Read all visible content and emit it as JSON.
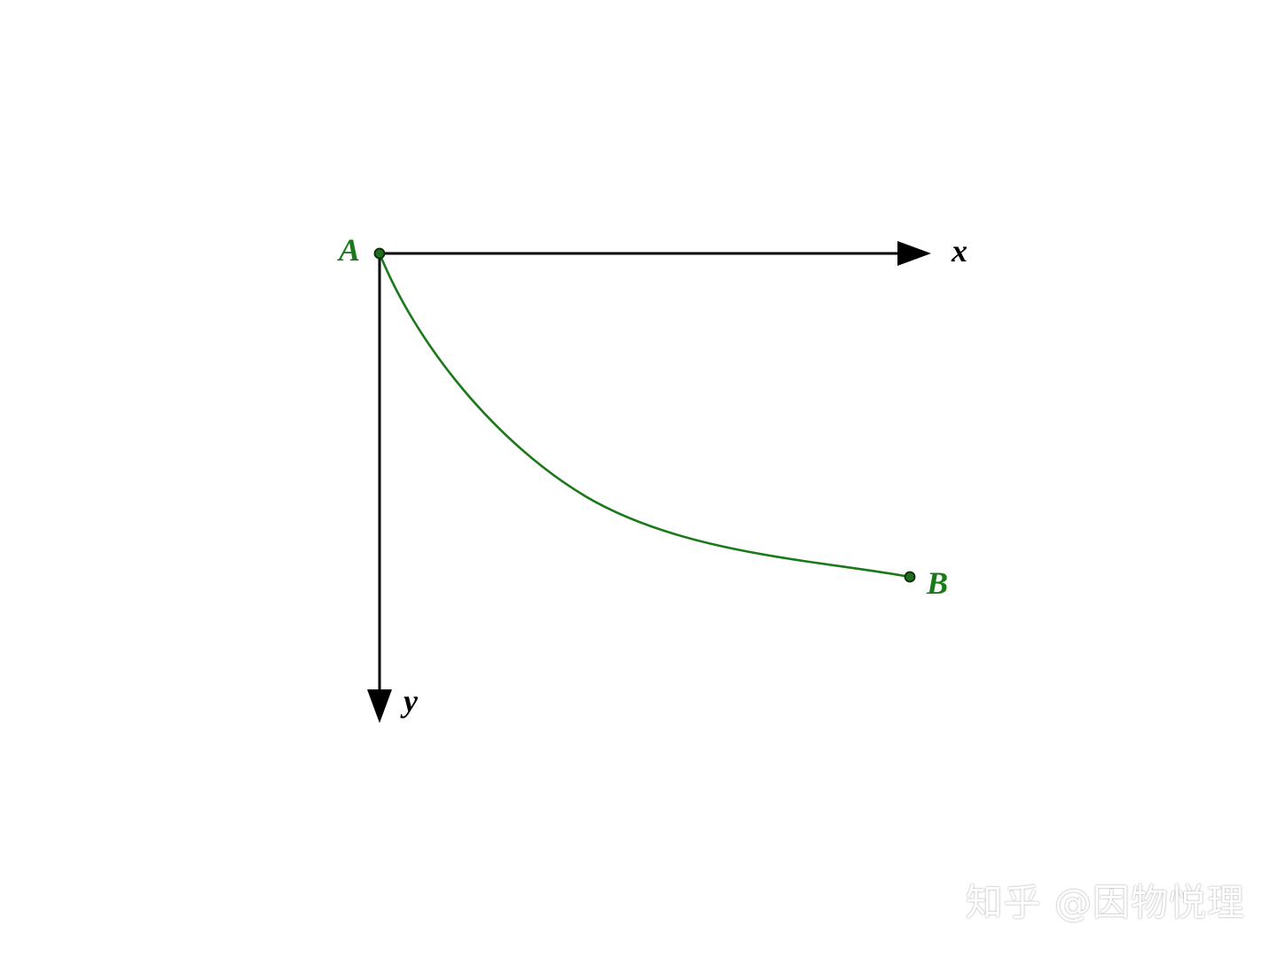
{
  "diagram": {
    "axis_x_label": "x",
    "axis_y_label": "y",
    "point_a_label": "A",
    "point_b_label": "B",
    "colors": {
      "axis": "#000000",
      "curve": "#1a7a1a",
      "point_fill": "#1f6e1f",
      "point_stroke": "#0a2a0a",
      "label_green": "#1a7a1a"
    }
  },
  "watermark": {
    "text": "知乎 @因物悦理"
  }
}
